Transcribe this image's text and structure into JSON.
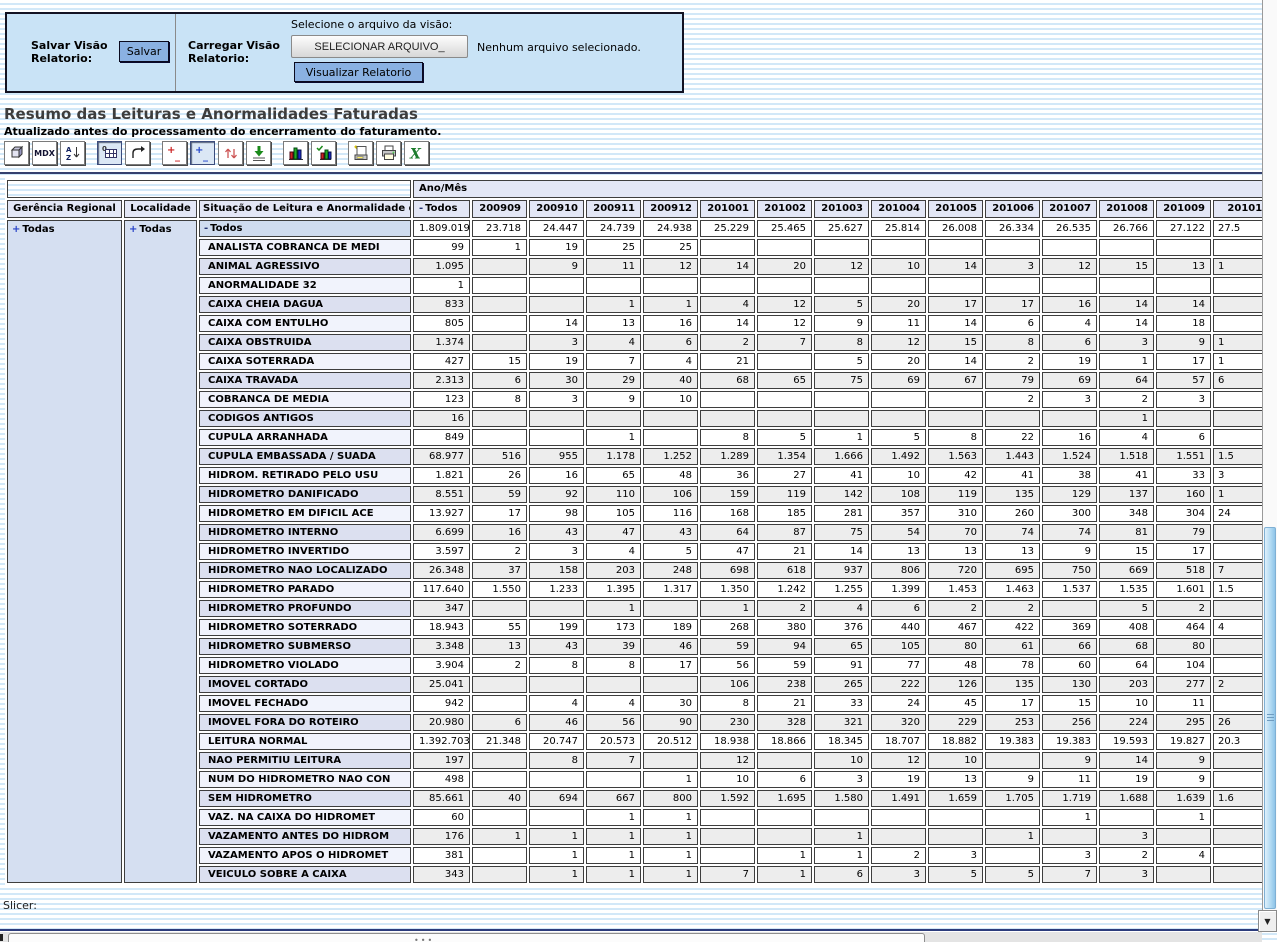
{
  "panel": {
    "save_label": "Salvar Visão Relatorio:",
    "save_button": "Salvar",
    "load_label": "Carregar Visão Relatorio:",
    "file_prompt": "Selecione o arquivo da visão:",
    "file_button": "SELECIONAR ARQUIVO_",
    "file_status": "Nenhum arquivo selecionado.",
    "view_button": "Visualizar Relatorio"
  },
  "report": {
    "title": "Resumo das Leituras e Anormalidades Faturadas",
    "subtitle": "Atualizado antes do processamento do encerramento do faturamento."
  },
  "toolbar": {
    "buttons": [
      {
        "name": "olap-navigator"
      },
      {
        "name": "mdx-editor",
        "label": "MDX"
      },
      {
        "name": "sort-az"
      },
      {
        "name": "show-empty-cells",
        "pressed": true
      },
      {
        "name": "swap-axes"
      },
      {
        "name": "drill-member"
      },
      {
        "name": "drill-position",
        "pressed": true
      },
      {
        "name": "drill-replace"
      },
      {
        "name": "drill-through"
      },
      {
        "name": "show-chart"
      },
      {
        "name": "chart-config"
      },
      {
        "name": "configure-print"
      },
      {
        "name": "print-pdf"
      },
      {
        "name": "export-excel"
      }
    ]
  },
  "colors": {
    "panel_bg": "#c9e3f6",
    "header_bg": "#e3e7f6",
    "stripe_blue": "#d2e8f8",
    "scroll_thumb": "#aed8f2"
  },
  "slicer_label": "Slicer:",
  "pivot": {
    "axis_label": "Ano/Mês",
    "row_headers": [
      "Gerência Regional",
      "Localidade",
      "Situação de Leitura e Anormalidade de Faturamento"
    ],
    "gerencia": {
      "prefix": "+",
      "label": "Todas"
    },
    "localidade": {
      "prefix": "+",
      "label": "Todas"
    },
    "col_total": {
      "prefix": "-",
      "label": "Todos"
    },
    "col_headers": [
      "200909",
      "200910",
      "200911",
      "200912",
      "201001",
      "201002",
      "201003",
      "201004",
      "201005",
      "201006",
      "201007",
      "201008",
      "201009",
      "20101"
    ],
    "rows": [
      {
        "prefix": "-",
        "label": "Todos",
        "values": [
          "1.809.019",
          "23.718",
          "24.447",
          "24.739",
          "24.938",
          "25.229",
          "25.465",
          "25.627",
          "25.814",
          "26.008",
          "26.334",
          "26.535",
          "26.766",
          "27.122",
          "27.5"
        ]
      },
      {
        "label": "ANALISTA COBRANCA DE MEDI",
        "values": [
          "99",
          "1",
          "19",
          "25",
          "25",
          "",
          "",
          "",
          "",
          "",
          "",
          "",
          "",
          "",
          ""
        ]
      },
      {
        "label": "ANIMAL AGRESSIVO",
        "values": [
          "1.095",
          "",
          "9",
          "11",
          "12",
          "14",
          "20",
          "12",
          "10",
          "14",
          "3",
          "12",
          "15",
          "13",
          "1"
        ]
      },
      {
        "label": "ANORMALIDADE 32",
        "values": [
          "1",
          "",
          "",
          "",
          "",
          "",
          "",
          "",
          "",
          "",
          "",
          "",
          "",
          "",
          ""
        ]
      },
      {
        "label": "CAIXA CHEIA DAGUA",
        "values": [
          "833",
          "",
          "",
          "1",
          "1",
          "4",
          "12",
          "5",
          "20",
          "17",
          "17",
          "16",
          "14",
          "14",
          ""
        ]
      },
      {
        "label": "CAIXA COM ENTULHO",
        "values": [
          "805",
          "",
          "14",
          "13",
          "16",
          "14",
          "12",
          "9",
          "11",
          "14",
          "6",
          "4",
          "14",
          "18",
          ""
        ]
      },
      {
        "label": "CAIXA OBSTRUIDA",
        "values": [
          "1.374",
          "",
          "3",
          "4",
          "6",
          "2",
          "7",
          "8",
          "12",
          "15",
          "8",
          "6",
          "3",
          "9",
          "1"
        ]
      },
      {
        "label": "CAIXA SOTERRADA",
        "values": [
          "427",
          "15",
          "19",
          "7",
          "4",
          "21",
          "",
          "5",
          "20",
          "14",
          "2",
          "19",
          "1",
          "17",
          "1"
        ]
      },
      {
        "label": "CAIXA TRAVADA",
        "values": [
          "2.313",
          "6",
          "30",
          "29",
          "40",
          "68",
          "65",
          "75",
          "69",
          "67",
          "79",
          "69",
          "64",
          "57",
          "6"
        ]
      },
      {
        "label": "COBRANCA DE MEDIA",
        "values": [
          "123",
          "8",
          "3",
          "9",
          "10",
          "",
          "",
          "",
          "",
          "",
          "2",
          "3",
          "2",
          "3",
          ""
        ]
      },
      {
        "label": "CODIGOS ANTIGOS",
        "values": [
          "16",
          "",
          "",
          "",
          "",
          "",
          "",
          "",
          "",
          "",
          "",
          "",
          "1",
          "",
          ""
        ]
      },
      {
        "label": "CUPULA ARRANHADA",
        "values": [
          "849",
          "",
          "",
          "1",
          "",
          "8",
          "5",
          "1",
          "5",
          "8",
          "22",
          "16",
          "4",
          "6",
          ""
        ]
      },
      {
        "label": "CUPULA EMBASSADA / SUADA",
        "values": [
          "68.977",
          "516",
          "955",
          "1.178",
          "1.252",
          "1.289",
          "1.354",
          "1.666",
          "1.492",
          "1.563",
          "1.443",
          "1.524",
          "1.518",
          "1.551",
          "1.5"
        ]
      },
      {
        "label": "HIDROM. RETIRADO PELO USU",
        "values": [
          "1.821",
          "26",
          "16",
          "65",
          "48",
          "36",
          "27",
          "41",
          "10",
          "42",
          "41",
          "38",
          "41",
          "33",
          "3"
        ]
      },
      {
        "label": "HIDROMETRO DANIFICADO",
        "values": [
          "8.551",
          "59",
          "92",
          "110",
          "106",
          "159",
          "119",
          "142",
          "108",
          "119",
          "135",
          "129",
          "137",
          "160",
          "1"
        ]
      },
      {
        "label": "HIDROMETRO EM DIFICIL ACE",
        "values": [
          "13.927",
          "17",
          "98",
          "105",
          "116",
          "168",
          "185",
          "281",
          "357",
          "310",
          "260",
          "300",
          "348",
          "304",
          "24"
        ]
      },
      {
        "label": "HIDROMETRO INTERNO",
        "values": [
          "6.699",
          "16",
          "43",
          "47",
          "43",
          "64",
          "87",
          "75",
          "54",
          "70",
          "74",
          "74",
          "81",
          "79",
          ""
        ]
      },
      {
        "label": "HIDROMETRO INVERTIDO",
        "values": [
          "3.597",
          "2",
          "3",
          "4",
          "5",
          "47",
          "21",
          "14",
          "13",
          "13",
          "13",
          "9",
          "15",
          "17",
          ""
        ]
      },
      {
        "label": "HIDROMETRO NAO LOCALIZADO",
        "values": [
          "26.348",
          "37",
          "158",
          "203",
          "248",
          "698",
          "618",
          "937",
          "806",
          "720",
          "695",
          "750",
          "669",
          "518",
          "7"
        ]
      },
      {
        "label": "HIDROMETRO PARADO",
        "values": [
          "117.640",
          "1.550",
          "1.233",
          "1.395",
          "1.317",
          "1.350",
          "1.242",
          "1.255",
          "1.399",
          "1.453",
          "1.463",
          "1.537",
          "1.535",
          "1.601",
          "1.5"
        ]
      },
      {
        "label": "HIDROMETRO PROFUNDO",
        "values": [
          "347",
          "",
          "",
          "1",
          "",
          "1",
          "2",
          "4",
          "6",
          "2",
          "2",
          "",
          "5",
          "2",
          ""
        ]
      },
      {
        "label": "HIDROMETRO SOTERRADO",
        "values": [
          "18.943",
          "55",
          "199",
          "173",
          "189",
          "268",
          "380",
          "376",
          "440",
          "467",
          "422",
          "369",
          "408",
          "464",
          "4"
        ]
      },
      {
        "label": "HIDROMETRO SUBMERSO",
        "values": [
          "3.348",
          "13",
          "43",
          "39",
          "46",
          "59",
          "94",
          "65",
          "105",
          "80",
          "61",
          "66",
          "68",
          "80",
          ""
        ]
      },
      {
        "label": "HIDROMETRO VIOLADO",
        "values": [
          "3.904",
          "2",
          "8",
          "8",
          "17",
          "56",
          "59",
          "91",
          "77",
          "48",
          "78",
          "60",
          "64",
          "104",
          ""
        ]
      },
      {
        "label": "IMOVEL CORTADO",
        "values": [
          "25.041",
          "",
          "",
          "",
          "",
          "106",
          "238",
          "265",
          "222",
          "126",
          "135",
          "130",
          "203",
          "277",
          "2"
        ]
      },
      {
        "label": "IMOVEL FECHADO",
        "values": [
          "942",
          "",
          "4",
          "4",
          "30",
          "8",
          "21",
          "33",
          "24",
          "45",
          "17",
          "15",
          "10",
          "11",
          ""
        ]
      },
      {
        "label": "IMOVEL FORA DO ROTEIRO",
        "values": [
          "20.980",
          "6",
          "46",
          "56",
          "90",
          "230",
          "328",
          "321",
          "320",
          "229",
          "253",
          "256",
          "224",
          "295",
          "26"
        ]
      },
      {
        "label": "LEITURA NORMAL",
        "values": [
          "1.392.703",
          "21.348",
          "20.747",
          "20.573",
          "20.512",
          "18.938",
          "18.866",
          "18.345",
          "18.707",
          "18.882",
          "19.383",
          "19.383",
          "19.593",
          "19.827",
          "20.3"
        ]
      },
      {
        "label": "NAO PERMITIU LEITURA",
        "values": [
          "197",
          "",
          "8",
          "7",
          "",
          "12",
          "",
          "10",
          "12",
          "10",
          "",
          "9",
          "14",
          "9",
          ""
        ]
      },
      {
        "label": "NUM DO HIDROMETRO NAO CON",
        "values": [
          "498",
          "",
          "",
          "",
          "1",
          "10",
          "6",
          "3",
          "19",
          "13",
          "9",
          "11",
          "19",
          "9",
          ""
        ]
      },
      {
        "label": "SEM HIDROMETRO",
        "values": [
          "85.661",
          "40",
          "694",
          "667",
          "800",
          "1.592",
          "1.695",
          "1.580",
          "1.491",
          "1.659",
          "1.705",
          "1.719",
          "1.688",
          "1.639",
          "1.6"
        ]
      },
      {
        "label": "VAZ. NA CAIXA DO HIDROMET",
        "values": [
          "60",
          "",
          "",
          "1",
          "1",
          "",
          "",
          "",
          "",
          "",
          "",
          "1",
          "",
          "1",
          ""
        ]
      },
      {
        "label": "VAZAMENTO ANTES DO HIDROM",
        "values": [
          "176",
          "1",
          "1",
          "1",
          "1",
          "",
          "",
          "1",
          "",
          "",
          "1",
          "",
          "3",
          "",
          ""
        ]
      },
      {
        "label": "VAZAMENTO APOS O HIDROMET",
        "values": [
          "381",
          "",
          "1",
          "1",
          "1",
          "",
          "1",
          "1",
          "2",
          "3",
          "",
          "3",
          "2",
          "4",
          ""
        ]
      },
      {
        "label": "VEICULO SOBRE A CAIXA",
        "values": [
          "343",
          "",
          "1",
          "1",
          "1",
          "7",
          "1",
          "6",
          "3",
          "5",
          "5",
          "7",
          "3",
          "",
          ""
        ]
      }
    ]
  }
}
